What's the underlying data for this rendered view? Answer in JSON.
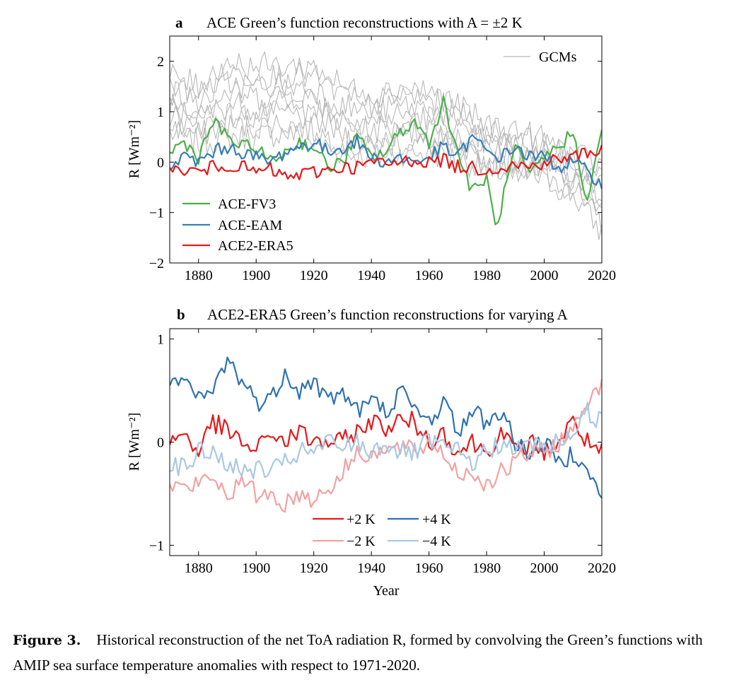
{
  "figure": {
    "caption_label": "Figure 3.",
    "caption_text": "Historical reconstruction of the net ToA radiation R, formed by convolving the Green’s functions with AMIP sea surface temperature anomalies with respect to 1971-2020."
  },
  "colors": {
    "gcm": "#b8b8b8",
    "fv3": "#4daf4a",
    "eam": "#377eb8",
    "era5": "#e41a1c",
    "p2": "#e41a1c",
    "p4": "#2f72b0",
    "m2": "#f4a1a1",
    "m4": "#a9c9e2"
  },
  "chart_data": [
    {
      "panel": "a",
      "type": "line",
      "title": "ACE Green’s function reconstructions with A = ±2 K",
      "xlabel": "",
      "ylabel": "R [Wm⁻²]",
      "xlim": [
        1870,
        2020
      ],
      "ylim": [
        -2,
        2.5
      ],
      "xticks": [
        1880,
        1900,
        1920,
        1940,
        1960,
        1980,
        2000,
        2020
      ],
      "yticks": [
        -2,
        -1,
        0,
        1,
        2
      ],
      "legend_top_right": "GCMs",
      "legend_bottom_left": [
        "ACE-FV3",
        "ACE-EAM",
        "ACE2-ERA5"
      ],
      "gcm_envelope": {
        "x": [
          1870,
          1880,
          1890,
          1900,
          1910,
          1920,
          1930,
          1940,
          1950,
          1960,
          1970,
          1980,
          1990,
          2000,
          2010,
          2020
        ],
        "low": [
          0.5,
          0.3,
          0.4,
          0.4,
          0.5,
          0.3,
          0.1,
          0.0,
          0.1,
          0.1,
          0.0,
          -0.2,
          -0.3,
          -0.4,
          -0.7,
          -1.5
        ],
        "high": [
          1.8,
          1.6,
          2.1,
          2.0,
          2.0,
          2.0,
          1.6,
          1.4,
          1.6,
          1.5,
          1.2,
          0.8,
          0.7,
          0.5,
          0.2,
          0.0
        ]
      },
      "series": [
        {
          "name": "ACE-FV3",
          "color_key": "fv3",
          "x": [
            1870,
            1875,
            1880,
            1885,
            1890,
            1895,
            1900,
            1905,
            1910,
            1915,
            1920,
            1925,
            1930,
            1935,
            1940,
            1945,
            1950,
            1955,
            1960,
            1965,
            1970,
            1975,
            1980,
            1983,
            1985,
            1990,
            1995,
            2000,
            2005,
            2010,
            2015,
            2020
          ],
          "y": [
            0.2,
            0.4,
            0.1,
            0.8,
            0.5,
            0.3,
            0.3,
            0.0,
            0.2,
            0.4,
            0.3,
            -0.1,
            0.0,
            0.5,
            0.1,
            0.2,
            0.6,
            0.8,
            0.4,
            1.2,
            0.2,
            -0.6,
            -0.3,
            -1.3,
            -0.9,
            0.3,
            -0.3,
            0.1,
            0.3,
            0.6,
            -0.8,
            0.6
          ]
        },
        {
          "name": "ACE-EAM",
          "color_key": "eam",
          "x": [
            1870,
            1875,
            1880,
            1885,
            1890,
            1895,
            1900,
            1905,
            1910,
            1915,
            1920,
            1925,
            1930,
            1935,
            1940,
            1945,
            1950,
            1955,
            1960,
            1965,
            1970,
            1975,
            1980,
            1985,
            1990,
            1995,
            2000,
            2005,
            2010,
            2015,
            2020
          ],
          "y": [
            -0.1,
            0.1,
            0.0,
            0.2,
            0.3,
            0.2,
            0.1,
            0.0,
            0.2,
            0.3,
            0.4,
            0.2,
            0.3,
            0.4,
            0.1,
            0.0,
            0.1,
            0.0,
            0.1,
            0.3,
            0.1,
            0.5,
            0.2,
            0.1,
            0.3,
            0.1,
            0.1,
            -0.1,
            0.0,
            -0.2,
            -0.4
          ]
        },
        {
          "name": "ACE2-ERA5",
          "color_key": "era5",
          "x": [
            1870,
            1875,
            1880,
            1885,
            1890,
            1895,
            1900,
            1905,
            1910,
            1915,
            1920,
            1925,
            1930,
            1935,
            1940,
            1945,
            1950,
            1955,
            1960,
            1965,
            1970,
            1975,
            1980,
            1985,
            1990,
            1995,
            2000,
            2005,
            2010,
            2015,
            2020
          ],
          "y": [
            -0.2,
            -0.15,
            -0.2,
            -0.1,
            -0.05,
            -0.1,
            -0.2,
            -0.15,
            -0.3,
            -0.25,
            -0.2,
            -0.15,
            -0.1,
            -0.1,
            0.0,
            -0.05,
            0.0,
            0.05,
            0.0,
            0.05,
            -0.1,
            -0.1,
            -0.15,
            -0.1,
            -0.05,
            -0.1,
            0.0,
            0.05,
            0.1,
            0.2,
            0.25
          ]
        }
      ]
    },
    {
      "panel": "b",
      "type": "line",
      "title": "ACE2-ERA5 Green’s function reconstructions for varying A",
      "xlabel": "Year",
      "ylabel": "R [Wm⁻²]",
      "xlim": [
        1870,
        2020
      ],
      "ylim": [
        -1.1,
        1.1
      ],
      "xticks": [
        1880,
        1900,
        1920,
        1940,
        1960,
        1980,
        2000,
        2020
      ],
      "yticks": [
        -1,
        0,
        1
      ],
      "legend": [
        "+2 K",
        "+4 K",
        "−2 K",
        "−4 K"
      ],
      "series": [
        {
          "name": "+2 K",
          "color_key": "p2",
          "x": [
            1870,
            1875,
            1880,
            1885,
            1890,
            1895,
            1900,
            1905,
            1910,
            1915,
            1920,
            1925,
            1930,
            1935,
            1940,
            1945,
            1950,
            1955,
            1960,
            1965,
            1970,
            1975,
            1980,
            1985,
            1990,
            1995,
            2000,
            2005,
            2010,
            2015,
            2020
          ],
          "y": [
            0.0,
            0.1,
            -0.1,
            0.2,
            0.1,
            0.0,
            -0.1,
            0.1,
            0.0,
            0.1,
            0.0,
            0.0,
            0.0,
            0.1,
            0.2,
            0.15,
            0.2,
            0.2,
            0.0,
            0.1,
            -0.1,
            0.0,
            -0.1,
            0.1,
            -0.1,
            0.0,
            -0.1,
            0.0,
            0.2,
            0.0,
            -0.1
          ]
        },
        {
          "name": "+4 K",
          "color_key": "p4",
          "x": [
            1870,
            1875,
            1880,
            1885,
            1890,
            1895,
            1900,
            1905,
            1910,
            1915,
            1920,
            1925,
            1930,
            1935,
            1940,
            1945,
            1950,
            1955,
            1960,
            1965,
            1970,
            1975,
            1980,
            1985,
            1990,
            1995,
            2000,
            2005,
            2010,
            2015,
            2020
          ],
          "y": [
            0.5,
            0.6,
            0.4,
            0.5,
            0.8,
            0.6,
            0.4,
            0.4,
            0.7,
            0.5,
            0.6,
            0.4,
            0.5,
            0.3,
            0.4,
            0.3,
            0.5,
            0.3,
            0.2,
            0.4,
            0.1,
            0.3,
            0.2,
            0.3,
            0.0,
            -0.1,
            0.0,
            -0.2,
            -0.1,
            -0.2,
            -0.6
          ]
        },
        {
          "name": "−2 K",
          "color_key": "m2",
          "x": [
            1870,
            1875,
            1880,
            1885,
            1890,
            1895,
            1900,
            1905,
            1910,
            1915,
            1920,
            1925,
            1930,
            1935,
            1940,
            1945,
            1950,
            1955,
            1960,
            1965,
            1970,
            1975,
            1980,
            1985,
            1990,
            1995,
            2000,
            2005,
            2010,
            2015,
            2020
          ],
          "y": [
            -0.4,
            -0.45,
            -0.4,
            -0.35,
            -0.5,
            -0.4,
            -0.5,
            -0.5,
            -0.6,
            -0.5,
            -0.55,
            -0.45,
            -0.3,
            -0.1,
            -0.1,
            -0.1,
            -0.05,
            -0.1,
            0.0,
            -0.1,
            -0.3,
            -0.3,
            -0.4,
            -0.3,
            -0.2,
            -0.1,
            -0.1,
            0.0,
            0.1,
            0.4,
            0.6
          ]
        },
        {
          "name": "−4 K",
          "color_key": "m4",
          "x": [
            1870,
            1875,
            1880,
            1885,
            1890,
            1895,
            1900,
            1905,
            1910,
            1915,
            1920,
            1925,
            1930,
            1935,
            1940,
            1945,
            1950,
            1955,
            1960,
            1965,
            1970,
            1975,
            1980,
            1985,
            1990,
            1995,
            2000,
            2005,
            2010,
            2015,
            2020
          ],
          "y": [
            -0.2,
            -0.25,
            -0.1,
            -0.1,
            -0.2,
            -0.3,
            -0.25,
            -0.3,
            -0.2,
            -0.1,
            -0.1,
            0.0,
            -0.05,
            0.0,
            -0.1,
            0.0,
            -0.1,
            -0.1,
            0.0,
            -0.05,
            -0.1,
            -0.2,
            -0.1,
            0.0,
            -0.1,
            0.0,
            -0.05,
            0.0,
            0.1,
            0.3,
            0.2
          ]
        }
      ]
    }
  ]
}
